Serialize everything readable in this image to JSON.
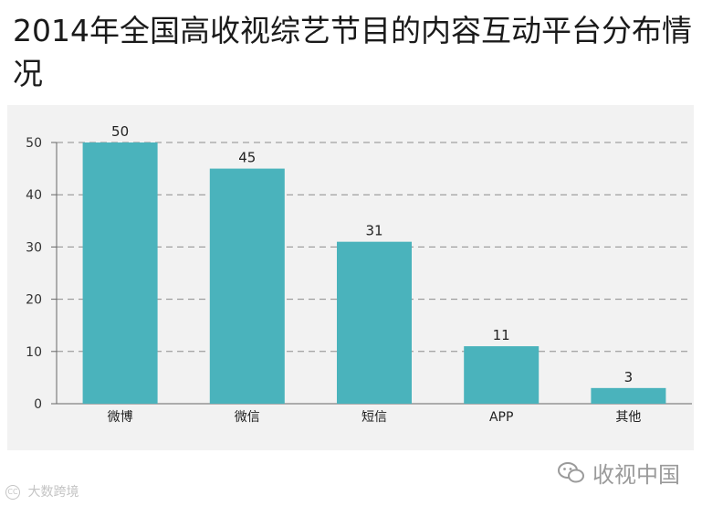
{
  "chart_data": {
    "type": "bar",
    "title": "2014年全国高收视综艺节目的内容互动平台分布情况",
    "categories": [
      "微博",
      "微信",
      "短信",
      "APP",
      "其他"
    ],
    "values": [
      50,
      45,
      31,
      11,
      3
    ],
    "ylim": [
      0,
      50
    ],
    "yticks": [
      0,
      10,
      20,
      30,
      40,
      50
    ],
    "grid": true,
    "bar_color": "#4ab3bc",
    "xlabel": "",
    "ylabel": ""
  },
  "watermarks": {
    "brand": "收视中国",
    "footer_cc": "CC",
    "footer": "大数跨境"
  },
  "colors": {
    "bar": "#4ab3bc",
    "panel": "#f2f2f2",
    "grid": "#8c8c8c"
  }
}
